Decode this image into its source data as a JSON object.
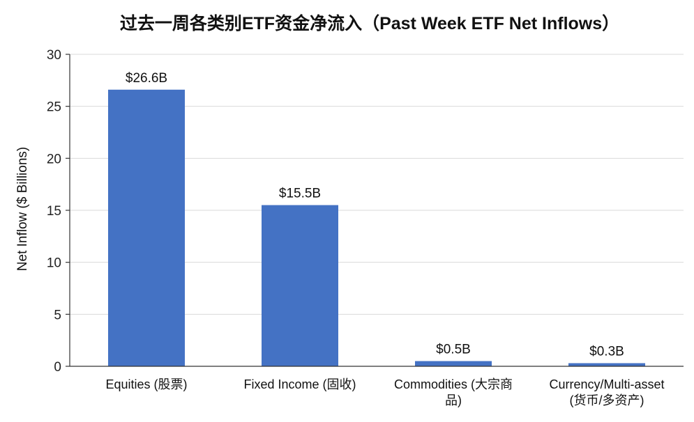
{
  "chart_data": {
    "type": "bar",
    "title": "过去一周各类别ETF资金净流入（Past Week ETF Net Inflows）",
    "xlabel": "",
    "ylabel": "Net Inflow ($ Billions)",
    "ylim": [
      0,
      30
    ],
    "yticks": [
      0,
      5,
      10,
      15,
      20,
      25,
      30
    ],
    "grid": true,
    "categories": [
      [
        "Equities (股票)"
      ],
      [
        "Fixed Income (固收)"
      ],
      [
        "Commodities (大宗商",
        "品)"
      ],
      [
        "Currency/Multi-asset",
        "(货币/多资产)"
      ]
    ],
    "values": [
      26.6,
      15.5,
      0.5,
      0.3
    ],
    "data_labels": [
      "$26.6B",
      "$15.5B",
      "$0.5B",
      "$0.3B"
    ],
    "bar_color": "#4472c4"
  }
}
